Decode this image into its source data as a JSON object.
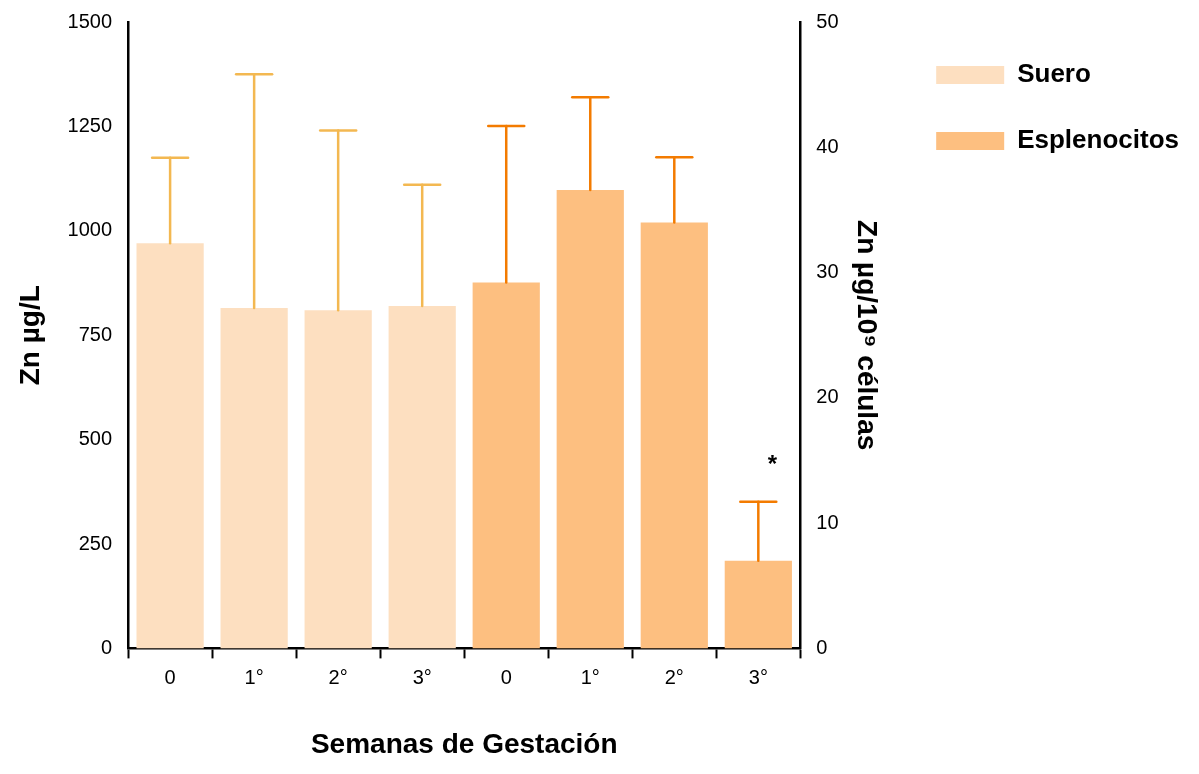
{
  "chart_data": {
    "type": "bar",
    "xlabel": "Semanas de Gestación",
    "ylabel": "Zn µg/L",
    "y2label": "Zn µg/10⁹ células",
    "categories": [
      "0",
      "1°",
      "2°",
      "3°",
      "0",
      "1°",
      "2°",
      "3°"
    ],
    "series": [
      {
        "name": "Suero",
        "color": "#fddfc0",
        "values": [
          970,
          815,
          810,
          820,
          null,
          null,
          null,
          null
        ],
        "errors": [
          [
            970,
            1175
          ],
          [
            815,
            1375
          ],
          [
            810,
            1240
          ],
          [
            820,
            1110
          ],
          null,
          null,
          null,
          null
        ]
      },
      {
        "name": "Esplenocitos",
        "color": "#fdbf80",
        "axis": "y2",
        "values": [
          null,
          null,
          null,
          null,
          29.2,
          36.6,
          34.0,
          7.0
        ],
        "errors": [
          null,
          null,
          null,
          null,
          [
            29.2,
            41.7
          ],
          [
            36.6,
            44.0
          ],
          [
            34.0,
            39.2
          ],
          [
            7.0,
            11.7
          ]
        ]
      }
    ],
    "ylim": [
      0,
      1500
    ],
    "yticks": [
      0,
      250,
      500,
      750,
      1000,
      1250,
      1500
    ],
    "y2lim": [
      0,
      50
    ],
    "y2ticks": [
      0,
      10,
      20,
      30,
      40,
      50
    ],
    "annotations": [
      "*"
    ],
    "legend": "top right",
    "grid": false
  }
}
